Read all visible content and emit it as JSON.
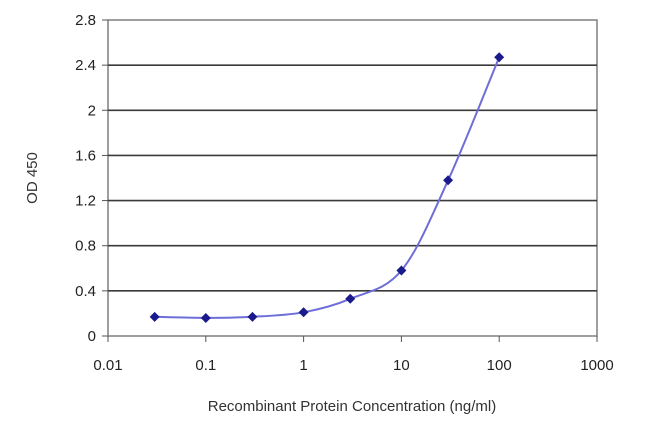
{
  "chart_data": {
    "type": "line",
    "title": "",
    "xlabel": "Recombinant Protein Concentration (ng/ml)",
    "ylabel": "OD 450",
    "xscale": "log",
    "xlim": [
      0.01,
      1000
    ],
    "ylim": [
      0,
      2.8
    ],
    "x_ticks": [
      0.01,
      0.1,
      1,
      10,
      100,
      1000
    ],
    "x_tick_labels": [
      "0.01",
      "0.1",
      "1",
      "10",
      "100",
      "1000"
    ],
    "y_ticks": [
      0,
      0.4,
      0.8,
      1.2,
      1.6,
      2,
      2.4,
      2.8
    ],
    "y_tick_labels": [
      "0",
      "0.4",
      "0.8",
      "1.2",
      "1.6",
      "2",
      "2.4",
      "2.8"
    ],
    "grid": "horizontal",
    "legend": "none",
    "series": [
      {
        "x": [
          0.03,
          0.1,
          0.3,
          1,
          3,
          10,
          30,
          100
        ],
        "y": [
          0.17,
          0.16,
          0.17,
          0.21,
          0.33,
          0.58,
          1.38,
          2.47
        ],
        "color": "#6e6ed8",
        "marker_color": "#1a1a8c"
      }
    ]
  }
}
